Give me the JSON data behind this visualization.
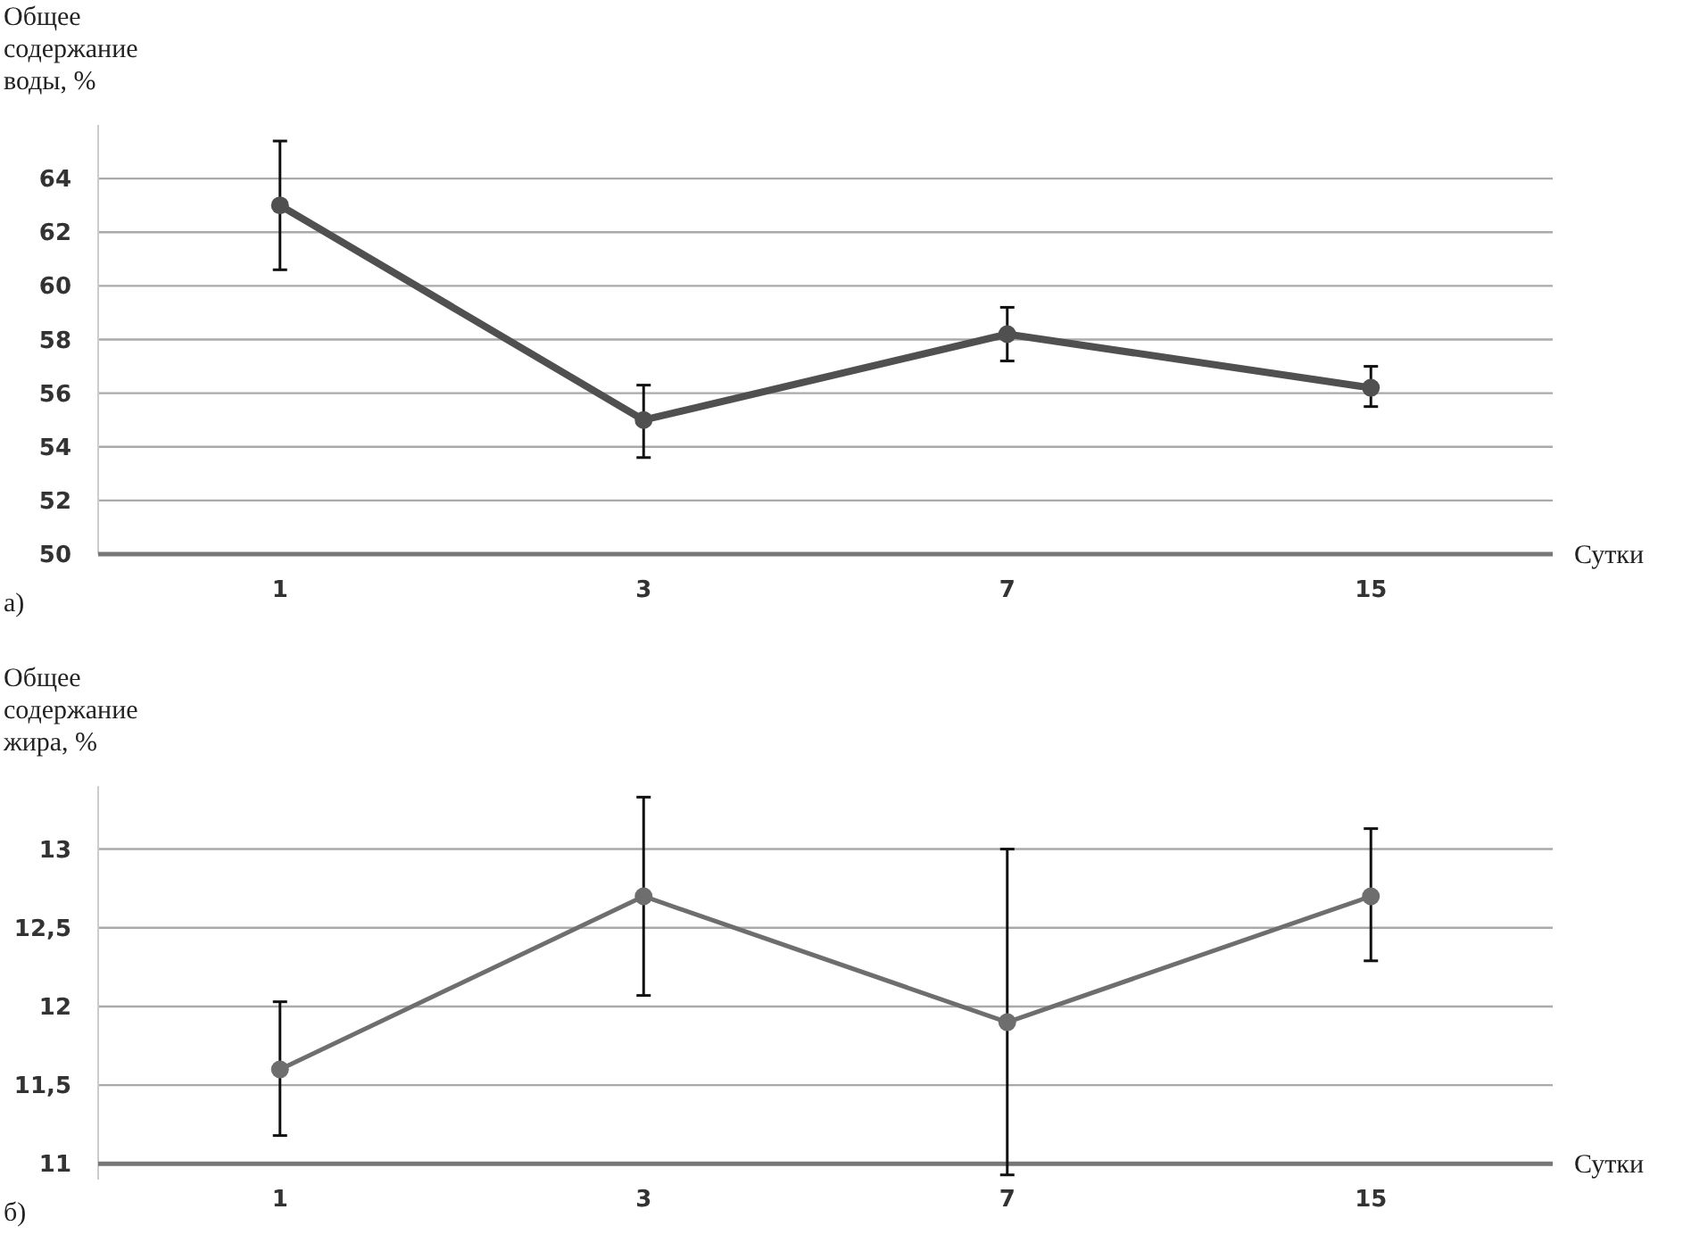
{
  "chart_data": [
    {
      "type": "line",
      "ylabel": "Общее содержание воды, %",
      "xlabel": "Сутки",
      "categories": [
        "1",
        "3",
        "7",
        "15"
      ],
      "series": [
        {
          "color": "#505050",
          "values": [
            63,
            55,
            58.2,
            56.2
          ],
          "errors": [
            [
              60.6,
              65.4
            ],
            [
              53.6,
              56.3
            ],
            [
              57.2,
              59.2
            ],
            [
              55.5,
              57
            ]
          ]
        }
      ],
      "ylim": [
        50,
        66
      ],
      "yticks": [
        50,
        52,
        54,
        56,
        58,
        60,
        62,
        64
      ],
      "grid": "y",
      "marker": "circle",
      "line_style": "solid",
      "annotations": [
        "а)"
      ]
    },
    {
      "type": "line",
      "ylabel": "Общее содержание жира, %",
      "xlabel": "Сутки",
      "categories": [
        "1",
        "3",
        "7",
        "15"
      ],
      "series": [
        {
          "color": "#6e6e6e",
          "values": [
            11.6,
            12.7,
            11.9,
            12.7
          ],
          "errors": [
            [
              11.18,
              12.03
            ],
            [
              12.07,
              13.33
            ],
            [
              10.93,
              13.0
            ],
            [
              12.29,
              13.13
            ]
          ]
        }
      ],
      "ylim": [
        10.9,
        13.4
      ],
      "yticks": [
        {
          "value": 11,
          "label": "11"
        },
        {
          "value": 11.5,
          "label": "11,5"
        },
        {
          "value": 12,
          "label": "12"
        },
        {
          "value": 12.5,
          "label": "12,5"
        },
        {
          "value": 13,
          "label": "13"
        }
      ],
      "grid": "y",
      "marker": "circle",
      "line_style": "solid",
      "annotations": [
        "б)"
      ]
    }
  ]
}
